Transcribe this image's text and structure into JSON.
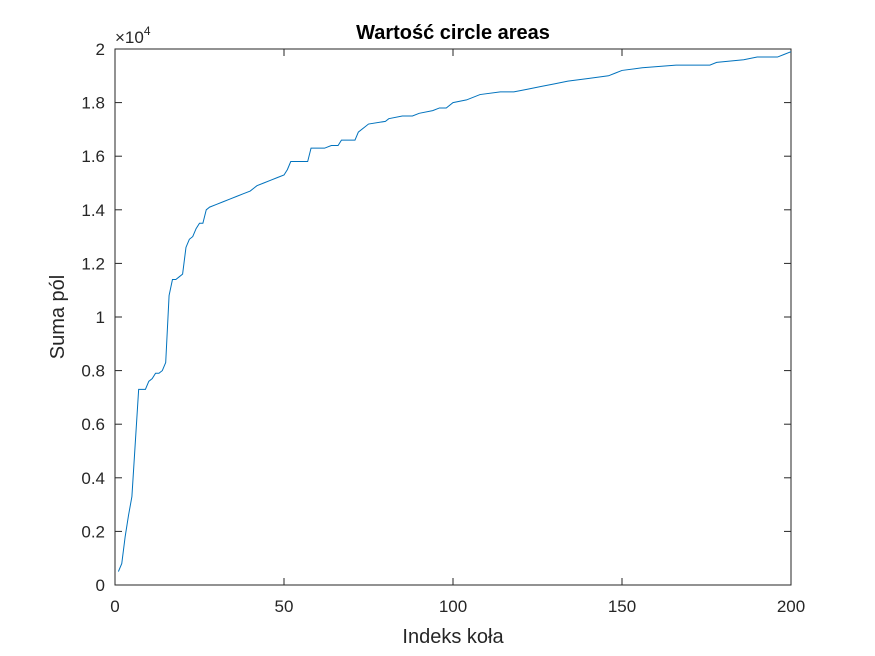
{
  "chart_data": {
    "type": "line",
    "title": "Wartość circle areas",
    "xlabel": "Indeks koła",
    "ylabel": "Suma pól",
    "xlim": [
      0,
      200
    ],
    "ylim": [
      0,
      20000
    ],
    "y_exponent_label": "×10",
    "y_exponent_power": "4",
    "xticks": [
      0,
      50,
      100,
      150,
      200
    ],
    "xtick_labels": [
      "0",
      "50",
      "100",
      "150",
      "200"
    ],
    "yticks": [
      0,
      2000,
      4000,
      6000,
      8000,
      10000,
      12000,
      14000,
      16000,
      18000,
      20000
    ],
    "ytick_labels": [
      "0",
      "0.2",
      "0.4",
      "0.6",
      "0.8",
      "1",
      "1.2",
      "1.4",
      "1.6",
      "1.8",
      "2"
    ],
    "grid": false,
    "colors": {
      "line": "#0072BD",
      "axes": "#262626",
      "background": "#ffffff"
    },
    "series": [
      {
        "x": [
          1,
          2,
          3,
          4,
          5,
          6,
          7,
          8,
          9,
          10,
          11,
          12,
          13,
          14,
          15,
          16,
          17,
          18,
          19,
          20,
          21,
          22,
          23,
          24,
          25,
          26,
          27,
          28,
          30,
          32,
          34,
          36,
          38,
          40,
          42,
          44,
          46,
          48,
          50,
          51,
          52,
          55,
          57,
          58,
          62,
          64,
          66,
          67,
          71,
          72,
          74,
          75,
          80,
          81,
          85,
          88,
          90,
          94,
          96,
          98,
          100,
          104,
          108,
          114,
          118,
          122,
          126,
          130,
          134,
          140,
          146,
          148,
          150,
          156,
          166,
          176,
          178,
          186,
          190,
          196,
          198,
          200
        ],
        "y": [
          500,
          800,
          1800,
          2600,
          3300,
          5300,
          7300,
          7300,
          7300,
          7600,
          7700,
          7900,
          7900,
          8000,
          8300,
          10800,
          11400,
          11400,
          11500,
          11600,
          12600,
          12900,
          13000,
          13300,
          13500,
          13500,
          14000,
          14100,
          14200,
          14300,
          14400,
          14500,
          14600,
          14700,
          14900,
          15000,
          15100,
          15200,
          15300,
          15500,
          15800,
          15800,
          15800,
          16300,
          16300,
          16400,
          16400,
          16600,
          16600,
          16900,
          17100,
          17200,
          17300,
          17400,
          17500,
          17500,
          17600,
          17700,
          17800,
          17800,
          18000,
          18100,
          18300,
          18400,
          18400,
          18500,
          18600,
          18700,
          18800,
          18900,
          19000,
          19100,
          19200,
          19300,
          19400,
          19400,
          19500,
          19600,
          19700,
          19700,
          19800,
          19900
        ]
      }
    ]
  }
}
